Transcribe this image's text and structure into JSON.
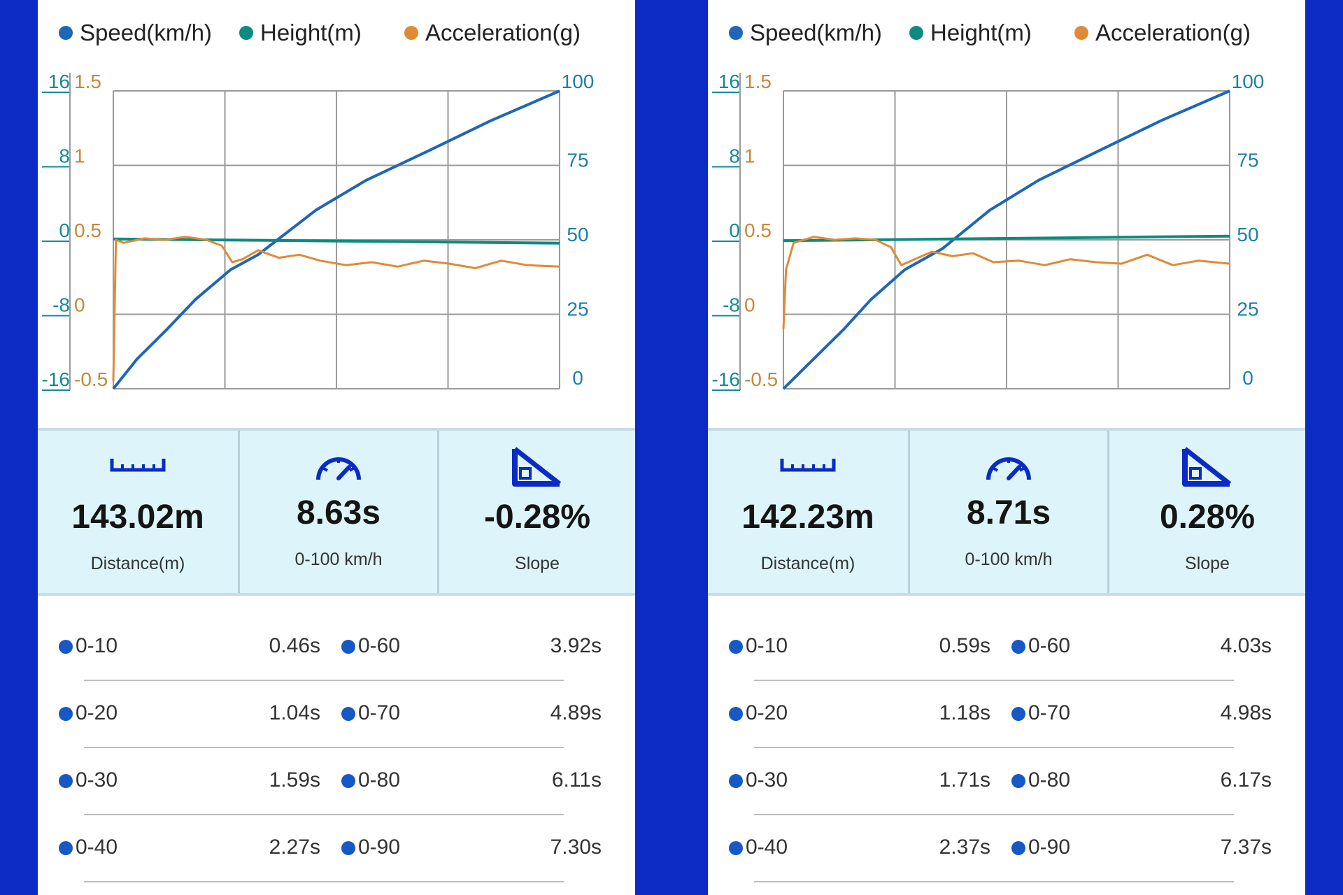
{
  "colors": {
    "speed": "#1e66b8",
    "height": "#0e8a80",
    "acceleration": "#e08a36",
    "height_axis": "#138a99",
    "accel_axis": "#c68838",
    "speed_axis": "#1a7fb0",
    "frame": "#0b2bc4",
    "stats_bg": "#ddf5fa",
    "split_dot": "#1758c7"
  },
  "legend": [
    {
      "label": "Speed(km/h)",
      "color": "#1e66b8"
    },
    {
      "label": "Height(m)",
      "color": "#0e8a80"
    },
    {
      "label": "Acceleration(g)",
      "color": "#e08a36"
    }
  ],
  "icons": {
    "distance": "ruler-icon",
    "time": "speedometer-icon",
    "slope": "slope-icon"
  },
  "panels": [
    {
      "stats": {
        "distance_value": "143.02m",
        "distance_label": "Distance(m)",
        "time_value": "8.63s",
        "time_label": "0-100 km/h",
        "slope_value": "-0.28%",
        "slope_label": "Slope"
      },
      "splits": [
        {
          "left_label": "0-10",
          "left_value": "0.46s",
          "right_label": "0-60",
          "right_value": "3.92s"
        },
        {
          "left_label": "0-20",
          "left_value": "1.04s",
          "right_label": "0-70",
          "right_value": "4.89s"
        },
        {
          "left_label": "0-30",
          "left_value": "1.59s",
          "right_label": "0-80",
          "right_value": "6.11s"
        },
        {
          "left_label": "0-40",
          "left_value": "2.27s",
          "right_label": "0-90",
          "right_value": "7.30s"
        }
      ]
    },
    {
      "stats": {
        "distance_value": "142.23m",
        "distance_label": "Distance(m)",
        "time_value": "8.71s",
        "time_label": "0-100 km/h",
        "slope_value": "0.28%",
        "slope_label": "Slope"
      },
      "splits": [
        {
          "left_label": "0-10",
          "left_value": "0.59s",
          "right_label": "0-60",
          "right_value": "4.03s"
        },
        {
          "left_label": "0-20",
          "left_value": "1.18s",
          "right_label": "0-70",
          "right_value": "4.98s"
        },
        {
          "left_label": "0-30",
          "left_value": "1.71s",
          "right_label": "0-80",
          "right_value": "6.17s"
        },
        {
          "left_label": "0-40",
          "left_value": "2.37s",
          "right_label": "0-90",
          "right_value": "7.37s"
        }
      ]
    }
  ],
  "chart_data": [
    {
      "type": "line",
      "height_axis": {
        "ticks": [
          "16",
          "8",
          "0",
          "-8",
          "-16"
        ],
        "range": [
          -16,
          16
        ]
      },
      "accel_axis": {
        "ticks": [
          "1.5",
          "1",
          "0.5",
          "0",
          "-0.5"
        ],
        "range": [
          -0.5,
          1.5
        ]
      },
      "speed_axis": {
        "ticks": [
          "100",
          "75",
          "50",
          "25",
          "0"
        ],
        "range": [
          0,
          100
        ]
      },
      "x_range": [
        0,
        8.63
      ],
      "grid": true,
      "legend_position": "top",
      "series": [
        {
          "name": "Speed(km/h)",
          "axis": "speed",
          "x": [
            0,
            0.46,
            1.04,
            1.59,
            2.27,
            2.8,
            3.92,
            4.89,
            6.11,
            7.3,
            8.63
          ],
          "y": [
            0,
            10,
            20,
            30,
            40,
            45,
            60,
            70,
            80,
            90,
            100
          ]
        },
        {
          "name": "Height(m)",
          "axis": "height",
          "x": [
            0,
            8.63
          ],
          "y": [
            0.1,
            -0.35
          ]
        },
        {
          "name": "Acceleration(g)",
          "axis": "accel",
          "x": [
            0,
            0.05,
            0.2,
            0.6,
            1.0,
            1.4,
            1.8,
            2.1,
            2.3,
            2.5,
            2.8,
            3.2,
            3.6,
            4.0,
            4.5,
            5.0,
            5.5,
            6.0,
            6.5,
            7.0,
            7.5,
            8.0,
            8.63
          ],
          "y": [
            -0.45,
            0.5,
            0.48,
            0.51,
            0.5,
            0.52,
            0.5,
            0.46,
            0.35,
            0.37,
            0.43,
            0.38,
            0.4,
            0.36,
            0.33,
            0.35,
            0.32,
            0.36,
            0.34,
            0.31,
            0.36,
            0.33,
            0.32
          ]
        }
      ]
    },
    {
      "type": "line",
      "height_axis": {
        "ticks": [
          "16",
          "8",
          "0",
          "-8",
          "-16"
        ],
        "range": [
          -16,
          16
        ]
      },
      "accel_axis": {
        "ticks": [
          "1.5",
          "1",
          "0.5",
          "0",
          "-0.5"
        ],
        "range": [
          -0.5,
          1.5
        ]
      },
      "speed_axis": {
        "ticks": [
          "100",
          "75",
          "50",
          "25",
          "0"
        ],
        "range": [
          0,
          100
        ]
      },
      "x_range": [
        0,
        8.71
      ],
      "grid": true,
      "legend_position": "top",
      "series": [
        {
          "name": "Speed(km/h)",
          "axis": "speed",
          "x": [
            0,
            0.59,
            1.18,
            1.71,
            2.37,
            3.1,
            4.03,
            4.98,
            6.17,
            7.37,
            8.71
          ],
          "y": [
            0,
            10,
            20,
            30,
            40,
            47,
            60,
            70,
            80,
            90,
            100
          ]
        },
        {
          "name": "Height(m)",
          "axis": "height",
          "x": [
            0,
            8.71
          ],
          "y": [
            -0.1,
            0.4
          ]
        },
        {
          "name": "Acceleration(g)",
          "axis": "accel",
          "x": [
            0,
            0.05,
            0.2,
            0.6,
            1.0,
            1.4,
            1.8,
            2.1,
            2.3,
            2.5,
            2.9,
            3.3,
            3.7,
            4.1,
            4.6,
            5.1,
            5.6,
            6.1,
            6.6,
            7.1,
            7.6,
            8.1,
            8.71
          ],
          "y": [
            -0.1,
            0.3,
            0.48,
            0.52,
            0.5,
            0.51,
            0.5,
            0.45,
            0.33,
            0.36,
            0.42,
            0.39,
            0.41,
            0.35,
            0.36,
            0.33,
            0.37,
            0.35,
            0.34,
            0.4,
            0.33,
            0.36,
            0.34
          ]
        }
      ]
    }
  ]
}
